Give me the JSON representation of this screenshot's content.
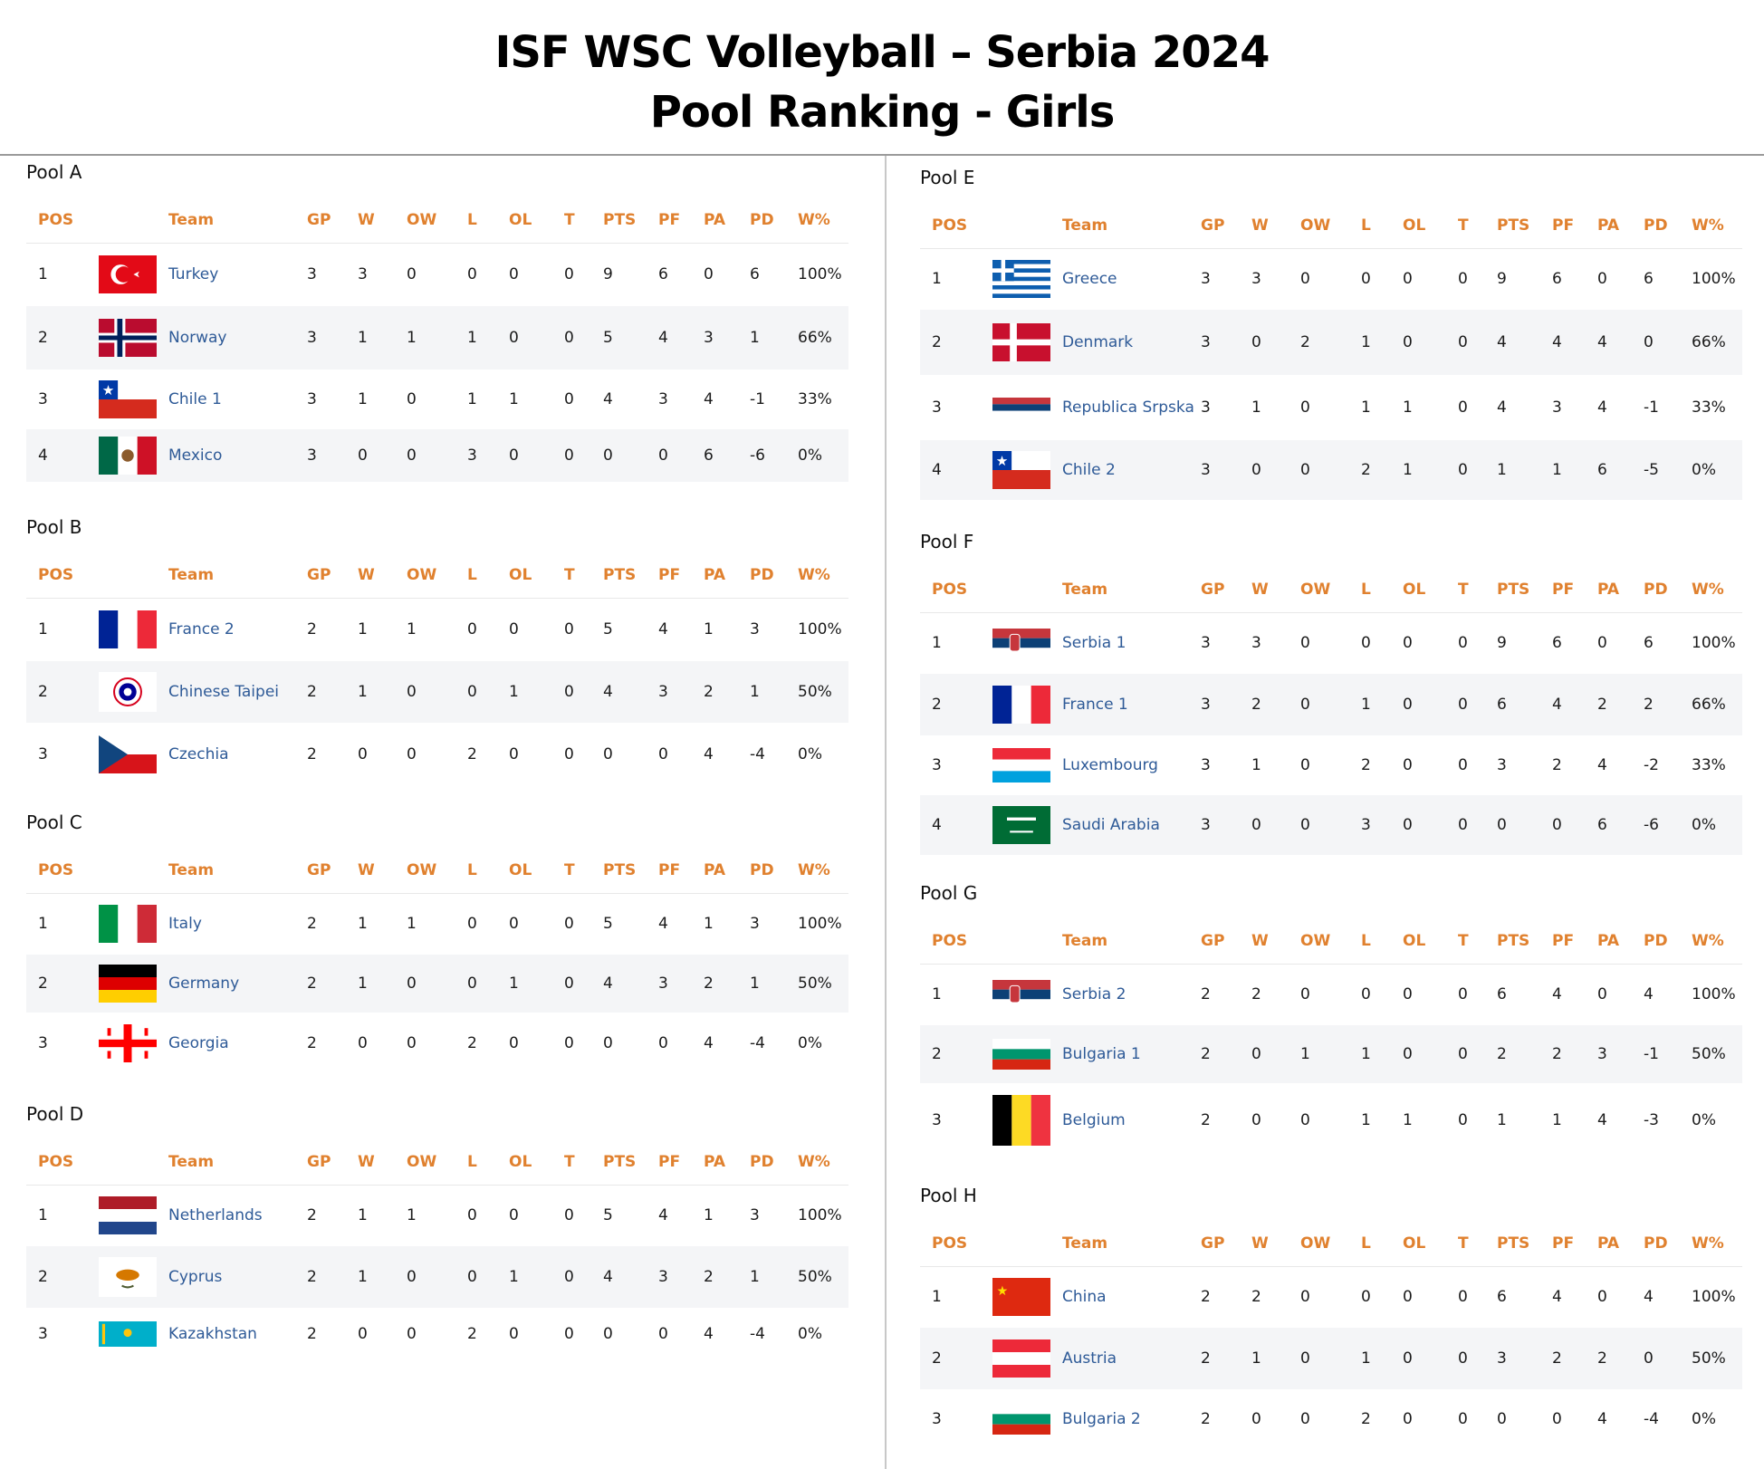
{
  "title": {
    "line1": "ISF WSC Volleyball – Serbia 2024",
    "line2": "Pool Ranking - Girls"
  },
  "columns": [
    "POS",
    "Team",
    "GP",
    "W",
    "OW",
    "L",
    "OL",
    "T",
    "PTS",
    "PF",
    "PA",
    "PD",
    "W%"
  ],
  "colors": {
    "header_text": "#e0812f",
    "team_link": "#2e5a97",
    "row_alt": "#f4f5f7"
  },
  "pools": [
    {
      "name": "Pool A",
      "rows": [
        {
          "pos": "1",
          "team": "Turkey",
          "flag": "turkey-flag-icon",
          "gp": "3",
          "w": "3",
          "ow": "0",
          "l": "0",
          "ol": "0",
          "t": "0",
          "pts": "9",
          "pf": "6",
          "pa": "0",
          "pd": "6",
          "wp": "100%"
        },
        {
          "pos": "2",
          "team": "Norway",
          "flag": "norway-flag-icon",
          "gp": "3",
          "w": "1",
          "ow": "1",
          "l": "1",
          "ol": "0",
          "t": "0",
          "pts": "5",
          "pf": "4",
          "pa": "3",
          "pd": "1",
          "wp": "66%"
        },
        {
          "pos": "3",
          "team": "Chile 1",
          "flag": "chile-flag-icon",
          "gp": "3",
          "w": "1",
          "ow": "0",
          "l": "1",
          "ol": "1",
          "t": "0",
          "pts": "4",
          "pf": "3",
          "pa": "4",
          "pd": "-1",
          "wp": "33%"
        },
        {
          "pos": "4",
          "team": "Mexico",
          "flag": "mexico-flag-icon",
          "gp": "3",
          "w": "0",
          "ow": "0",
          "l": "3",
          "ol": "0",
          "t": "0",
          "pts": "0",
          "pf": "0",
          "pa": "6",
          "pd": "-6",
          "wp": "0%"
        }
      ]
    },
    {
      "name": "Pool B",
      "rows": [
        {
          "pos": "1",
          "team": "France 2",
          "flag": "france-flag-icon",
          "gp": "2",
          "w": "1",
          "ow": "1",
          "l": "0",
          "ol": "0",
          "t": "0",
          "pts": "5",
          "pf": "4",
          "pa": "1",
          "pd": "3",
          "wp": "100%"
        },
        {
          "pos": "2",
          "team": "Chinese Taipei",
          "flag": "chinese-taipei-flag-icon",
          "gp": "2",
          "w": "1",
          "ow": "0",
          "l": "0",
          "ol": "1",
          "t": "0",
          "pts": "4",
          "pf": "3",
          "pa": "2",
          "pd": "1",
          "wp": "50%"
        },
        {
          "pos": "3",
          "team": "Czechia",
          "flag": "czechia-flag-icon",
          "gp": "2",
          "w": "0",
          "ow": "0",
          "l": "2",
          "ol": "0",
          "t": "0",
          "pts": "0",
          "pf": "0",
          "pa": "4",
          "pd": "-4",
          "wp": "0%"
        }
      ]
    },
    {
      "name": "Pool C",
      "rows": [
        {
          "pos": "1",
          "team": "Italy",
          "flag": "italy-flag-icon",
          "gp": "2",
          "w": "1",
          "ow": "1",
          "l": "0",
          "ol": "0",
          "t": "0",
          "pts": "5",
          "pf": "4",
          "pa": "1",
          "pd": "3",
          "wp": "100%"
        },
        {
          "pos": "2",
          "team": "Germany",
          "flag": "germany-flag-icon",
          "gp": "2",
          "w": "1",
          "ow": "0",
          "l": "0",
          "ol": "1",
          "t": "0",
          "pts": "4",
          "pf": "3",
          "pa": "2",
          "pd": "1",
          "wp": "50%"
        },
        {
          "pos": "3",
          "team": "Georgia",
          "flag": "georgia-flag-icon",
          "gp": "2",
          "w": "0",
          "ow": "0",
          "l": "2",
          "ol": "0",
          "t": "0",
          "pts": "0",
          "pf": "0",
          "pa": "4",
          "pd": "-4",
          "wp": "0%"
        }
      ]
    },
    {
      "name": "Pool D",
      "rows": [
        {
          "pos": "1",
          "team": "Netherlands",
          "flag": "netherlands-flag-icon",
          "gp": "2",
          "w": "1",
          "ow": "1",
          "l": "0",
          "ol": "0",
          "t": "0",
          "pts": "5",
          "pf": "4",
          "pa": "1",
          "pd": "3",
          "wp": "100%"
        },
        {
          "pos": "2",
          "team": "Cyprus",
          "flag": "cyprus-flag-icon",
          "gp": "2",
          "w": "1",
          "ow": "0",
          "l": "0",
          "ol": "1",
          "t": "0",
          "pts": "4",
          "pf": "3",
          "pa": "2",
          "pd": "1",
          "wp": "50%"
        },
        {
          "pos": "3",
          "team": "Kazakhstan",
          "flag": "kazakhstan-flag-icon",
          "gp": "2",
          "w": "0",
          "ow": "0",
          "l": "2",
          "ol": "0",
          "t": "0",
          "pts": "0",
          "pf": "0",
          "pa": "4",
          "pd": "-4",
          "wp": "0%"
        }
      ]
    },
    {
      "name": "Pool E",
      "rows": [
        {
          "pos": "1",
          "team": "Greece",
          "flag": "greece-flag-icon",
          "gp": "3",
          "w": "3",
          "ow": "0",
          "l": "0",
          "ol": "0",
          "t": "0",
          "pts": "9",
          "pf": "6",
          "pa": "0",
          "pd": "6",
          "wp": "100%"
        },
        {
          "pos": "2",
          "team": "Denmark",
          "flag": "denmark-flag-icon",
          "gp": "3",
          "w": "0",
          "ow": "2",
          "l": "1",
          "ol": "0",
          "t": "0",
          "pts": "4",
          "pf": "4",
          "pa": "4",
          "pd": "0",
          "wp": "66%"
        },
        {
          "pos": "3",
          "team": "Republica Srpska",
          "flag": "republika-srpska-flag-icon",
          "gp": "3",
          "w": "1",
          "ow": "0",
          "l": "1",
          "ol": "1",
          "t": "0",
          "pts": "4",
          "pf": "3",
          "pa": "4",
          "pd": "-1",
          "wp": "33%"
        },
        {
          "pos": "4",
          "team": "Chile 2",
          "flag": "chile-flag-icon",
          "gp": "3",
          "w": "0",
          "ow": "0",
          "l": "2",
          "ol": "1",
          "t": "0",
          "pts": "1",
          "pf": "1",
          "pa": "6",
          "pd": "-5",
          "wp": "0%"
        }
      ]
    },
    {
      "name": "Pool F",
      "rows": [
        {
          "pos": "1",
          "team": "Serbia 1",
          "flag": "serbia-flag-icon",
          "gp": "3",
          "w": "3",
          "ow": "0",
          "l": "0",
          "ol": "0",
          "t": "0",
          "pts": "9",
          "pf": "6",
          "pa": "0",
          "pd": "6",
          "wp": "100%"
        },
        {
          "pos": "2",
          "team": "France 1",
          "flag": "france-flag-icon",
          "gp": "3",
          "w": "2",
          "ow": "0",
          "l": "1",
          "ol": "0",
          "t": "0",
          "pts": "6",
          "pf": "4",
          "pa": "2",
          "pd": "2",
          "wp": "66%"
        },
        {
          "pos": "3",
          "team": "Luxembourg",
          "flag": "luxembourg-flag-icon",
          "gp": "3",
          "w": "1",
          "ow": "0",
          "l": "2",
          "ol": "0",
          "t": "0",
          "pts": "3",
          "pf": "2",
          "pa": "4",
          "pd": "-2",
          "wp": "33%"
        },
        {
          "pos": "4",
          "team": "Saudi Arabia",
          "flag": "saudi-arabia-flag-icon",
          "gp": "3",
          "w": "0",
          "ow": "0",
          "l": "3",
          "ol": "0",
          "t": "0",
          "pts": "0",
          "pf": "0",
          "pa": "6",
          "pd": "-6",
          "wp": "0%"
        }
      ]
    },
    {
      "name": "Pool G",
      "rows": [
        {
          "pos": "1",
          "team": "Serbia 2",
          "flag": "serbia-flag-icon",
          "gp": "2",
          "w": "2",
          "ow": "0",
          "l": "0",
          "ol": "0",
          "t": "0",
          "pts": "6",
          "pf": "4",
          "pa": "0",
          "pd": "4",
          "wp": "100%"
        },
        {
          "pos": "2",
          "team": "Bulgaria 1",
          "flag": "bulgaria-flag-icon",
          "gp": "2",
          "w": "0",
          "ow": "1",
          "l": "1",
          "ol": "0",
          "t": "0",
          "pts": "2",
          "pf": "2",
          "pa": "3",
          "pd": "-1",
          "wp": "50%"
        },
        {
          "pos": "3",
          "team": "Belgium",
          "flag": "belgium-flag-icon",
          "gp": "2",
          "w": "0",
          "ow": "0",
          "l": "1",
          "ol": "1",
          "t": "0",
          "pts": "1",
          "pf": "1",
          "pa": "4",
          "pd": "-3",
          "wp": "0%"
        }
      ]
    },
    {
      "name": "Pool H",
      "rows": [
        {
          "pos": "1",
          "team": "China",
          "flag": "china-flag-icon",
          "gp": "2",
          "w": "2",
          "ow": "0",
          "l": "0",
          "ol": "0",
          "t": "0",
          "pts": "6",
          "pf": "4",
          "pa": "0",
          "pd": "4",
          "wp": "100%"
        },
        {
          "pos": "2",
          "team": "Austria",
          "flag": "austria-flag-icon",
          "gp": "2",
          "w": "1",
          "ow": "0",
          "l": "1",
          "ol": "0",
          "t": "0",
          "pts": "3",
          "pf": "2",
          "pa": "2",
          "pd": "0",
          "wp": "50%"
        },
        {
          "pos": "3",
          "team": "Bulgaria 2",
          "flag": "bulgaria-flag-icon",
          "gp": "2",
          "w": "0",
          "ow": "0",
          "l": "2",
          "ol": "0",
          "t": "0",
          "pts": "0",
          "pf": "0",
          "pa": "4",
          "pd": "-4",
          "wp": "0%"
        }
      ]
    }
  ]
}
